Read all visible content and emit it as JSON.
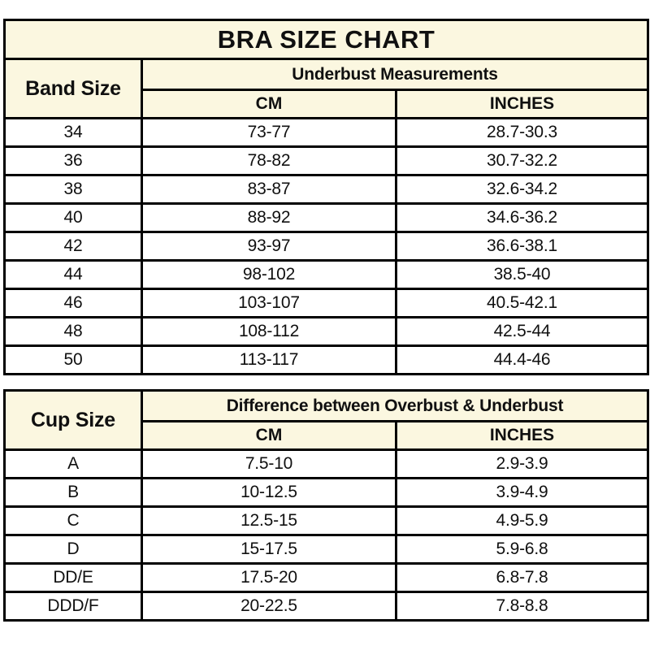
{
  "colors": {
    "header_background": "#FBF7E0",
    "border": "#000000",
    "row_background": "#FFFFFF",
    "text": "#101010"
  },
  "chart_data": [
    {
      "type": "table",
      "title": "BRA SIZE CHART",
      "corner_header": "Band Size",
      "group_header": "Underbust Measurements",
      "columns": [
        "CM",
        "INCHES"
      ],
      "rows": [
        [
          "34",
          "73-77",
          "28.7-30.3"
        ],
        [
          "36",
          "78-82",
          "30.7-32.2"
        ],
        [
          "38",
          "83-87",
          "32.6-34.2"
        ],
        [
          "40",
          "88-92",
          "34.6-36.2"
        ],
        [
          "42",
          "93-97",
          "36.6-38.1"
        ],
        [
          "44",
          "98-102",
          "38.5-40"
        ],
        [
          "46",
          "103-107",
          "40.5-42.1"
        ],
        [
          "48",
          "108-112",
          "42.5-44"
        ],
        [
          "50",
          "113-117",
          "44.4-46"
        ]
      ]
    },
    {
      "type": "table",
      "title": "",
      "corner_header": "Cup Size",
      "group_header": "Difference between Overbust & Underbust",
      "columns": [
        "CM",
        "INCHES"
      ],
      "rows": [
        [
          "A",
          "7.5-10",
          "2.9-3.9"
        ],
        [
          "B",
          "10-12.5",
          "3.9-4.9"
        ],
        [
          "C",
          "12.5-15",
          "4.9-5.9"
        ],
        [
          "D",
          "15-17.5",
          "5.9-6.8"
        ],
        [
          "DD/E",
          "17.5-20",
          "6.8-7.8"
        ],
        [
          "DDD/F",
          "20-22.5",
          "7.8-8.8"
        ]
      ]
    }
  ]
}
